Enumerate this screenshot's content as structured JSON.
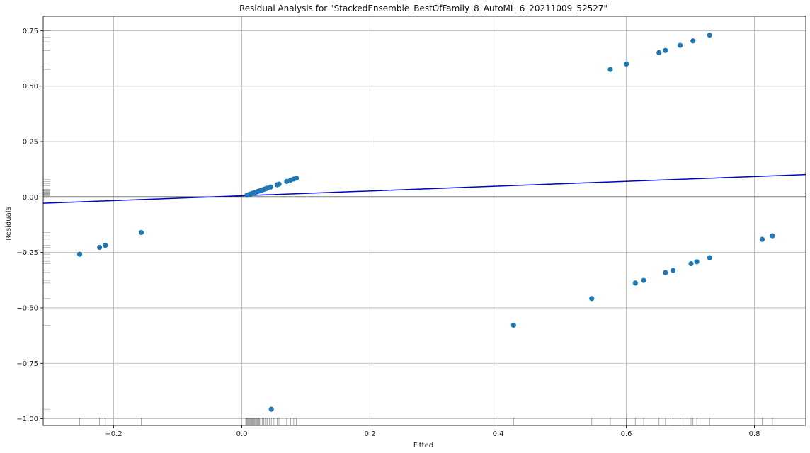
{
  "chart_data": {
    "type": "scatter",
    "title": "Residual Analysis for \"StackedEnsemble_BestOfFamily_8_AutoML_6_20211009_52527\"",
    "xlabel": "Fitted",
    "ylabel": "Residuals",
    "xlim": [
      -0.31,
      0.88
    ],
    "ylim": [
      -1.03,
      0.815
    ],
    "xticks": [
      -0.2,
      0.0,
      0.2,
      0.4,
      0.6,
      0.8
    ],
    "xtick_labels": [
      "−0.2",
      "0.0",
      "0.2",
      "0.4",
      "0.6",
      "0.8"
    ],
    "yticks": [
      -1.0,
      -0.75,
      -0.5,
      -0.25,
      0.0,
      0.25,
      0.5,
      0.75
    ],
    "ytick_labels": [
      "−1.00",
      "−0.75",
      "−0.50",
      "−0.25",
      "0.00",
      "0.25",
      "0.50",
      "0.75"
    ],
    "grid": true,
    "colors": {
      "points": "#1f77b4",
      "trend": "#0000cc",
      "zero_line": "#000000",
      "grid": "#b0b0b0"
    },
    "points": {
      "x": [
        0.575,
        0.6,
        0.651,
        0.661,
        0.684,
        0.704,
        0.73,
        -0.253,
        -0.222,
        -0.213,
        -0.157,
        0.424,
        0.546,
        0.614,
        0.627,
        0.661,
        0.673,
        0.701,
        0.71,
        0.73,
        0.812,
        0.828,
        0.046,
        0.008,
        0.01,
        0.012,
        0.014,
        0.016,
        0.018,
        0.02,
        0.022,
        0.024,
        0.026,
        0.028,
        0.03,
        0.032,
        0.034,
        0.036,
        0.038,
        0.04,
        0.045,
        0.055,
        0.058,
        0.07,
        0.076,
        0.081,
        0.085
      ],
      "y": [
        0.575,
        0.6,
        0.651,
        0.661,
        0.684,
        0.704,
        0.73,
        -0.258,
        -0.227,
        -0.218,
        -0.16,
        -0.578,
        -0.458,
        -0.388,
        -0.376,
        -0.341,
        -0.331,
        -0.301,
        -0.292,
        -0.274,
        -0.191,
        -0.175,
        -0.957,
        0.008,
        0.01,
        0.012,
        0.014,
        0.016,
        0.018,
        0.02,
        0.022,
        0.024,
        0.026,
        0.028,
        0.03,
        0.032,
        0.034,
        0.036,
        0.038,
        0.04,
        0.045,
        0.055,
        0.058,
        0.07,
        0.076,
        0.081,
        0.085
      ]
    },
    "trend_line": {
      "x": [
        -0.31,
        0.88
      ],
      "y": [
        -0.028,
        0.101
      ]
    },
    "zero_line": 0.0,
    "rug_x": [
      -0.253,
      -0.222,
      -0.213,
      -0.157,
      0.006,
      0.007,
      0.008,
      0.009,
      0.01,
      0.011,
      0.012,
      0.013,
      0.014,
      0.015,
      0.016,
      0.017,
      0.018,
      0.019,
      0.02,
      0.021,
      0.022,
      0.023,
      0.024,
      0.025,
      0.026,
      0.027,
      0.028,
      0.03,
      0.032,
      0.034,
      0.036,
      0.038,
      0.04,
      0.043,
      0.046,
      0.05,
      0.055,
      0.058,
      0.07,
      0.076,
      0.081,
      0.085,
      0.424,
      0.546,
      0.575,
      0.6,
      0.614,
      0.627,
      0.651,
      0.661,
      0.673,
      0.684,
      0.701,
      0.704,
      0.71,
      0.73,
      0.812,
      0.828
    ],
    "rug_y": [
      0.75,
      0.72,
      0.7,
      0.66,
      0.6,
      0.575,
      0.08,
      0.07,
      0.06,
      0.05,
      0.04,
      0.035,
      0.03,
      0.028,
      0.025,
      0.022,
      0.02,
      0.018,
      0.016,
      0.014,
      0.012,
      0.01,
      0.008,
      0.006,
      -0.16,
      -0.175,
      -0.19,
      -0.218,
      -0.227,
      -0.258,
      -0.274,
      -0.29,
      -0.3,
      -0.33,
      -0.34,
      -0.376,
      -0.388,
      -0.458,
      -0.578,
      -0.957
    ]
  }
}
